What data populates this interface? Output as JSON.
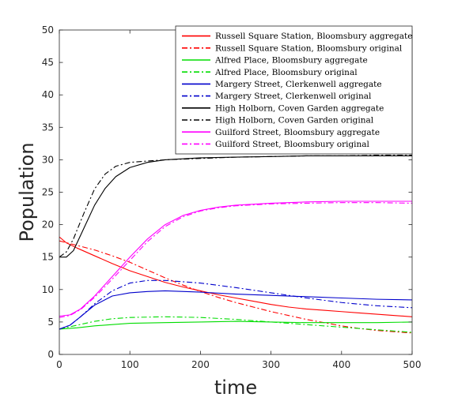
{
  "chart_data": {
    "type": "line",
    "title": "",
    "xlabel": "time",
    "ylabel": "Population",
    "xlim": [
      0,
      500
    ],
    "ylim": [
      0,
      50
    ],
    "xticks": [
      0,
      100,
      200,
      300,
      400,
      500
    ],
    "yticks": [
      0,
      5,
      10,
      15,
      20,
      25,
      30,
      35,
      40,
      45,
      50
    ],
    "grid": false,
    "legend_position": "top-right",
    "series": [
      {
        "name": "Russell Square Station, Bloomsbury aggregate",
        "color": "#ff0000",
        "style": "solid",
        "points": [
          [
            0,
            18.1
          ],
          [
            10,
            17.2
          ],
          [
            25,
            16.4
          ],
          [
            50,
            15.2
          ],
          [
            75,
            14.0
          ],
          [
            100,
            12.9
          ],
          [
            125,
            12.0
          ],
          [
            150,
            11.1
          ],
          [
            175,
            10.4
          ],
          [
            200,
            9.8
          ],
          [
            225,
            9.2
          ],
          [
            250,
            8.7
          ],
          [
            275,
            8.2
          ],
          [
            300,
            7.7
          ],
          [
            325,
            7.3
          ],
          [
            350,
            7.0
          ],
          [
            375,
            6.8
          ],
          [
            400,
            6.6
          ],
          [
            425,
            6.4
          ],
          [
            450,
            6.2
          ],
          [
            475,
            6.0
          ],
          [
            500,
            5.8
          ]
        ]
      },
      {
        "name": "Russell Square Station, Bloomsbury original",
        "color": "#ff0000",
        "style": "dashdot",
        "points": [
          [
            0,
            17.5
          ],
          [
            25,
            16.8
          ],
          [
            50,
            16.1
          ],
          [
            75,
            15.2
          ],
          [
            100,
            14.2
          ],
          [
            125,
            13.0
          ],
          [
            150,
            11.8
          ],
          [
            175,
            10.7
          ],
          [
            200,
            9.7
          ],
          [
            225,
            8.8
          ],
          [
            250,
            8.0
          ],
          [
            275,
            7.3
          ],
          [
            300,
            6.6
          ],
          [
            325,
            6.0
          ],
          [
            350,
            5.4
          ],
          [
            375,
            4.9
          ],
          [
            400,
            4.4
          ],
          [
            425,
            4.0
          ],
          [
            450,
            3.7
          ],
          [
            475,
            3.5
          ],
          [
            500,
            3.3
          ]
        ]
      },
      {
        "name": "Alfred Place, Bloomsbury aggregate",
        "color": "#00dd00",
        "style": "solid",
        "points": [
          [
            0,
            3.9
          ],
          [
            25,
            4.1
          ],
          [
            50,
            4.4
          ],
          [
            75,
            4.6
          ],
          [
            100,
            4.8
          ],
          [
            150,
            4.9
          ],
          [
            200,
            5.0
          ],
          [
            250,
            5.1
          ],
          [
            300,
            5.0
          ],
          [
            350,
            4.9
          ],
          [
            400,
            4.9
          ],
          [
            450,
            4.9
          ],
          [
            500,
            5.0
          ]
        ]
      },
      {
        "name": "Alfred Place, Bloomsbury original",
        "color": "#00dd00",
        "style": "dashdot",
        "points": [
          [
            0,
            3.9
          ],
          [
            25,
            4.5
          ],
          [
            50,
            5.1
          ],
          [
            75,
            5.5
          ],
          [
            100,
            5.7
          ],
          [
            150,
            5.8
          ],
          [
            200,
            5.7
          ],
          [
            250,
            5.4
          ],
          [
            300,
            5.0
          ],
          [
            350,
            4.6
          ],
          [
            400,
            4.2
          ],
          [
            450,
            3.8
          ],
          [
            500,
            3.4
          ]
        ]
      },
      {
        "name": "Margery Street, Clerkenwell aggregate",
        "color": "#0000cc",
        "style": "solid",
        "points": [
          [
            0,
            3.9
          ],
          [
            15,
            4.5
          ],
          [
            30,
            5.8
          ],
          [
            50,
            7.6
          ],
          [
            75,
            9.0
          ],
          [
            100,
            9.5
          ],
          [
            125,
            9.7
          ],
          [
            150,
            9.8
          ],
          [
            200,
            9.6
          ],
          [
            250,
            9.3
          ],
          [
            300,
            9.1
          ],
          [
            350,
            8.9
          ],
          [
            400,
            8.7
          ],
          [
            450,
            8.5
          ],
          [
            500,
            8.4
          ]
        ]
      },
      {
        "name": "Margery Street, Clerkenwell original",
        "color": "#0000cc",
        "style": "dashdot",
        "points": [
          [
            0,
            3.9
          ],
          [
            15,
            4.5
          ],
          [
            30,
            5.8
          ],
          [
            50,
            7.8
          ],
          [
            75,
            9.8
          ],
          [
            100,
            11.0
          ],
          [
            125,
            11.4
          ],
          [
            150,
            11.4
          ],
          [
            200,
            11.0
          ],
          [
            250,
            10.3
          ],
          [
            300,
            9.5
          ],
          [
            350,
            8.7
          ],
          [
            400,
            8.0
          ],
          [
            450,
            7.5
          ],
          [
            500,
            7.2
          ]
        ]
      },
      {
        "name": "High Holborn, Coven Garden aggregate",
        "color": "#000000",
        "style": "solid",
        "points": [
          [
            0,
            15.0
          ],
          [
            10,
            15.0
          ],
          [
            20,
            16.0
          ],
          [
            35,
            19.5
          ],
          [
            50,
            23.0
          ],
          [
            65,
            25.6
          ],
          [
            80,
            27.4
          ],
          [
            100,
            28.8
          ],
          [
            125,
            29.6
          ],
          [
            150,
            30.0
          ],
          [
            200,
            30.3
          ],
          [
            250,
            30.4
          ],
          [
            300,
            30.5
          ],
          [
            350,
            30.6
          ],
          [
            400,
            30.6
          ],
          [
            450,
            30.6
          ],
          [
            500,
            30.6
          ]
        ]
      },
      {
        "name": "High Holborn, Coven Garden original",
        "color": "#000000",
        "style": "dashdot",
        "points": [
          [
            0,
            15.0
          ],
          [
            10,
            15.8
          ],
          [
            20,
            17.8
          ],
          [
            35,
            21.8
          ],
          [
            50,
            25.5
          ],
          [
            65,
            27.8
          ],
          [
            80,
            29.0
          ],
          [
            100,
            29.6
          ],
          [
            125,
            29.8
          ],
          [
            150,
            30.0
          ],
          [
            200,
            30.2
          ],
          [
            250,
            30.4
          ],
          [
            300,
            30.5
          ],
          [
            350,
            30.6
          ],
          [
            400,
            30.6
          ],
          [
            450,
            30.7
          ],
          [
            500,
            30.7
          ]
        ]
      },
      {
        "name": "Guilford Street, Bloomsbury aggregate",
        "color": "#ff00ff",
        "style": "solid",
        "points": [
          [
            0,
            5.9
          ],
          [
            15,
            6.1
          ],
          [
            30,
            7.0
          ],
          [
            50,
            9.0
          ],
          [
            75,
            12.0
          ],
          [
            100,
            15.0
          ],
          [
            125,
            17.8
          ],
          [
            150,
            20.0
          ],
          [
            175,
            21.4
          ],
          [
            200,
            22.2
          ],
          [
            225,
            22.7
          ],
          [
            250,
            23.0
          ],
          [
            300,
            23.3
          ],
          [
            350,
            23.5
          ],
          [
            400,
            23.6
          ],
          [
            450,
            23.6
          ],
          [
            500,
            23.6
          ]
        ]
      },
      {
        "name": "Guilford Street, Bloomsbury original",
        "color": "#ff00ff",
        "style": "dashdot",
        "points": [
          [
            0,
            5.7
          ],
          [
            15,
            6.0
          ],
          [
            30,
            6.9
          ],
          [
            50,
            8.8
          ],
          [
            75,
            11.6
          ],
          [
            100,
            14.5
          ],
          [
            125,
            17.4
          ],
          [
            150,
            19.7
          ],
          [
            175,
            21.2
          ],
          [
            200,
            22.1
          ],
          [
            225,
            22.6
          ],
          [
            250,
            22.9
          ],
          [
            300,
            23.2
          ],
          [
            350,
            23.3
          ],
          [
            400,
            23.4
          ],
          [
            450,
            23.4
          ],
          [
            500,
            23.3
          ]
        ]
      }
    ]
  }
}
